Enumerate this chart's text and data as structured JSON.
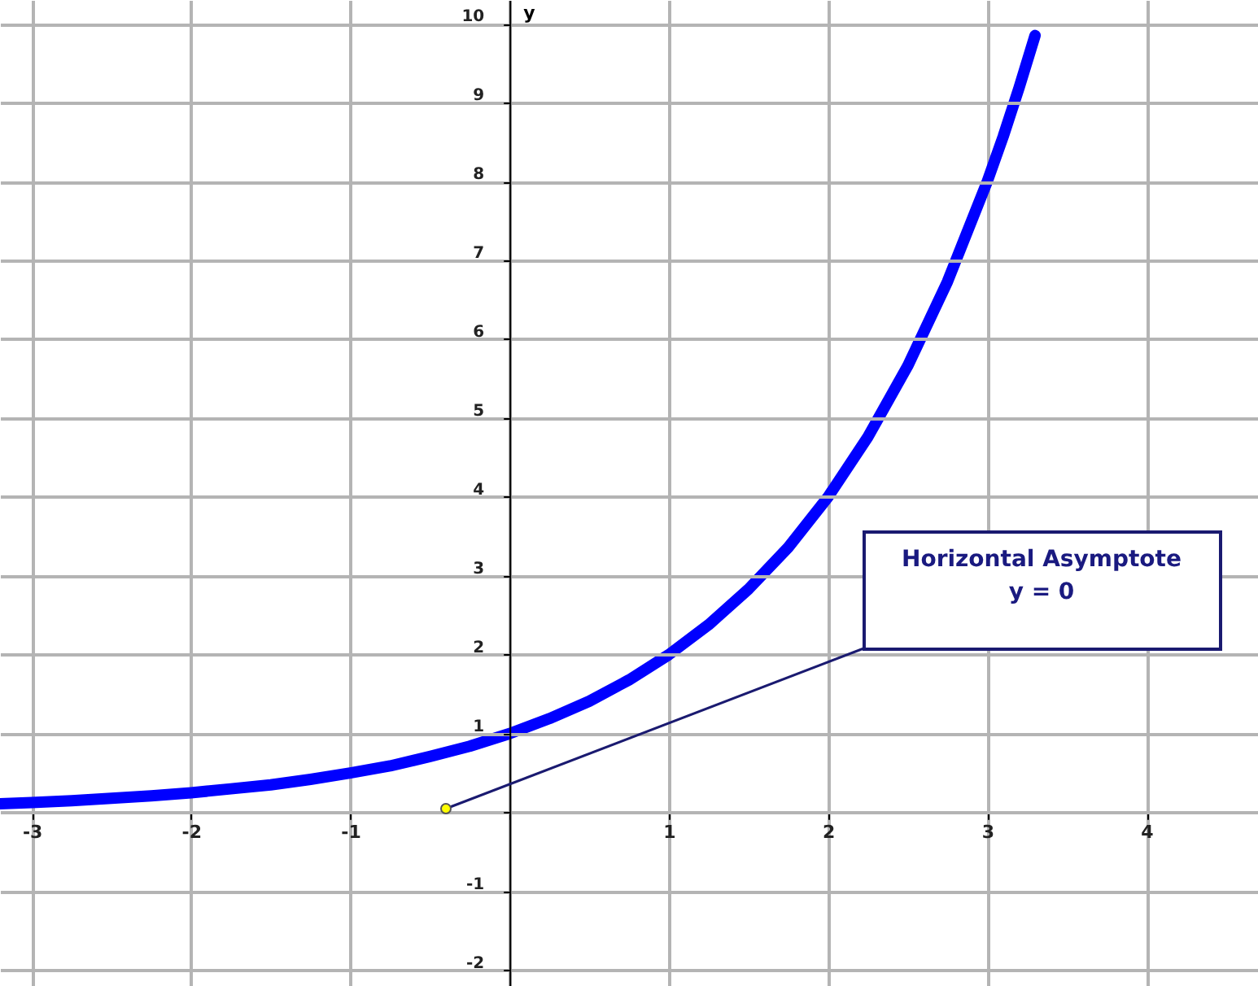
{
  "chart_data": {
    "type": "line",
    "ylabel": "y",
    "x": [
      -3.2,
      -3,
      -2.75,
      -2.5,
      -2.25,
      -2,
      -1.75,
      -1.5,
      -1.25,
      -1,
      -0.75,
      -0.5,
      -0.25,
      0,
      0.25,
      0.5,
      0.75,
      1,
      1.25,
      1.5,
      1.75,
      2,
      2.25,
      2.5,
      2.75,
      3,
      3.1,
      3.2,
      3.3
    ],
    "series": [
      {
        "color": "#0000ff",
        "values": [
          0.11,
          0.125,
          0.15,
          0.18,
          0.21,
          0.25,
          0.3,
          0.35,
          0.42,
          0.5,
          0.59,
          0.71,
          0.84,
          1,
          1.19,
          1.41,
          1.68,
          2,
          2.38,
          2.83,
          3.36,
          4,
          4.76,
          5.66,
          6.73,
          8,
          8.57,
          9.19,
          9.85
        ]
      }
    ],
    "xlim": [
      -3.2,
      4.7
    ],
    "ylim": [
      -2.2,
      10.3
    ],
    "xticks": [
      -3,
      -2,
      -1,
      {
        "value": 0,
        "label": null
      },
      1,
      2,
      3,
      4
    ],
    "yticks": [
      -2,
      -1,
      {
        "value": 0,
        "label": null
      },
      1,
      2,
      3,
      4,
      5,
      6,
      7,
      8,
      9,
      10
    ],
    "grid": true,
    "line_style": "solid",
    "annotations": [
      "Horizontal Asymptote\ny = 0"
    ]
  }
}
